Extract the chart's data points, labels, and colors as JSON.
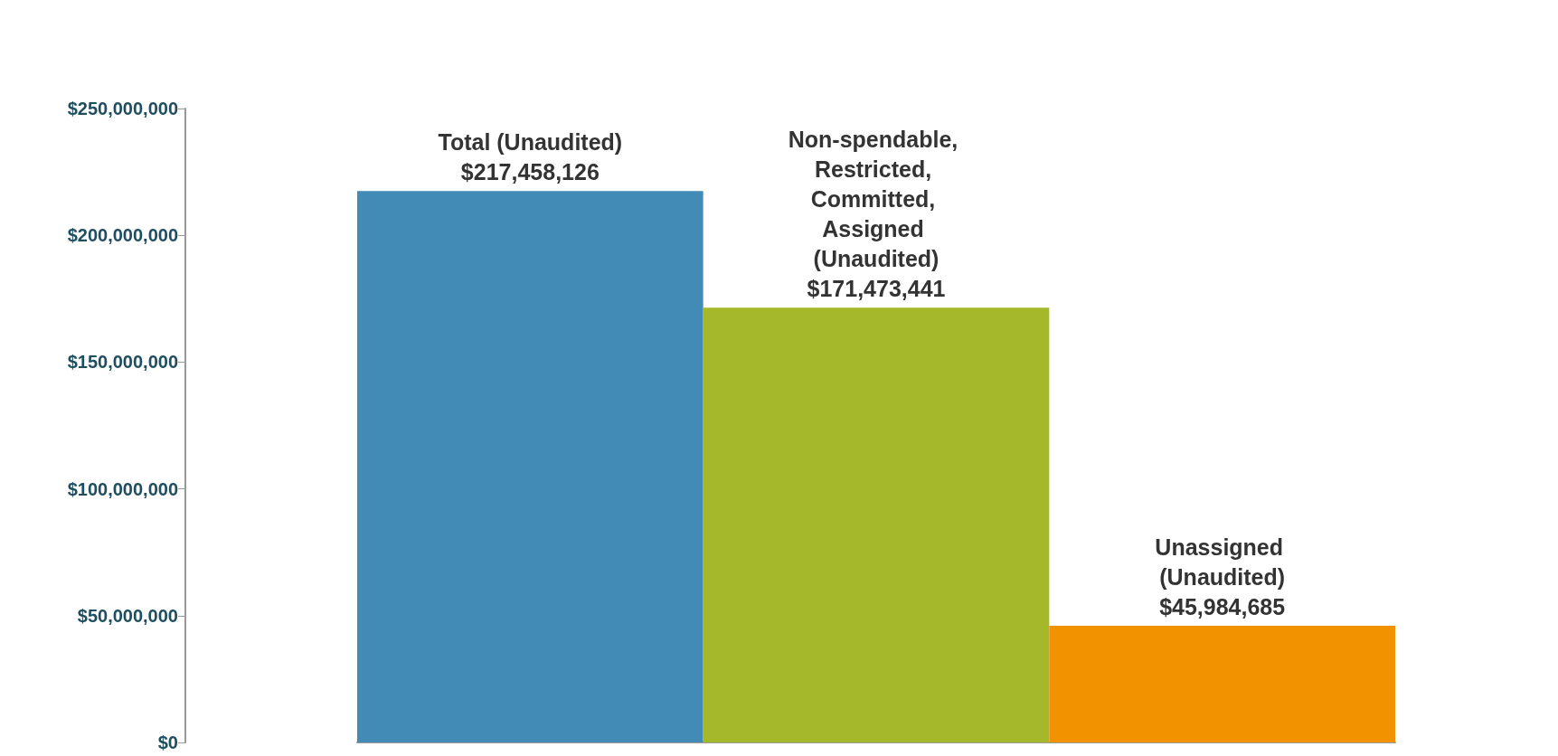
{
  "chart_data": {
    "type": "bar",
    "categories": [
      "Total (Unaudited)",
      "Non-spendable, Restricted, Committed, Assigned (Unaudited)",
      "Unassigned (Unaudited)"
    ],
    "values": [
      217458126,
      171473441,
      45984685
    ],
    "colors": [
      "#428bb7",
      "#a5b82a",
      "#f39200"
    ],
    "value_labels": [
      "$217,458,126",
      "$171,473,441",
      "$45,984,685"
    ],
    "ylim": [
      0,
      250000000
    ],
    "yticks": [
      {
        "value": 0,
        "label": "$0"
      },
      {
        "value": 50000000,
        "label": "$50,000,000"
      },
      {
        "value": 100000000,
        "label": "$100,000,000"
      },
      {
        "value": 150000000,
        "label": "$150,000,000"
      },
      {
        "value": 200000000,
        "label": "$200,000,000"
      },
      {
        "value": 250000000,
        "label": "$250,000,000"
      }
    ],
    "grid": false
  }
}
